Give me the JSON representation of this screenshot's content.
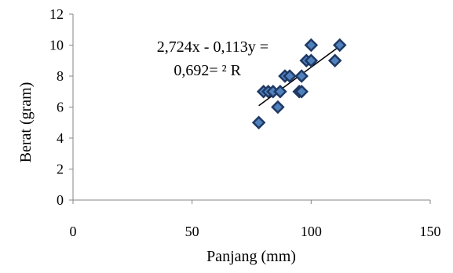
{
  "chart_data": {
    "type": "scatter",
    "xlabel": "Panjang (mm)",
    "ylabel": "Berat (gram)",
    "xlim": [
      0,
      150
    ],
    "ylim": [
      0,
      12
    ],
    "xticks": [
      0,
      50,
      100,
      150
    ],
    "yticks": [
      0,
      2,
      4,
      6,
      8,
      10,
      12
    ],
    "grid": false,
    "legend": "none",
    "marker_color": "#1F3864",
    "marker_fill": "#4F81BD",
    "trendline_color": "#000000",
    "trendline": {
      "type": "linear",
      "slope": 0.113,
      "intercept": -2.724,
      "equation_line1": "2,724x - 0,113y =",
      "equation_line2": "0,692= ² R"
    },
    "series": [
      {
        "points": [
          [
            78,
            5
          ],
          [
            80,
            7
          ],
          [
            82,
            7
          ],
          [
            84,
            7
          ],
          [
            86,
            6
          ],
          [
            87,
            7
          ],
          [
            89,
            8
          ],
          [
            91,
            8
          ],
          [
            95,
            7
          ],
          [
            96,
            7
          ],
          [
            96,
            8
          ],
          [
            98,
            9
          ],
          [
            100,
            9
          ],
          [
            100,
            10
          ],
          [
            110,
            9
          ],
          [
            112,
            10
          ]
        ]
      }
    ]
  }
}
